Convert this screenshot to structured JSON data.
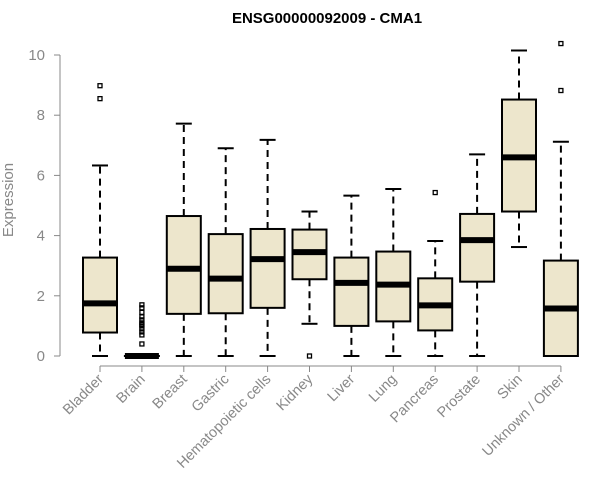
{
  "chart_data": {
    "type": "boxplot",
    "title": "ENSG00000092009 - CMA1",
    "xlabel": "",
    "ylabel": "Expression",
    "ylim": [
      0,
      10
    ],
    "yticks": [
      0,
      2,
      4,
      6,
      8,
      10
    ],
    "box_fill": "#ede6cc",
    "categories": [
      "Bladder",
      "Brain",
      "Breast",
      "Gastric",
      "Hematopoietic cells",
      "Kidney",
      "Liver",
      "Lung",
      "Pancreas",
      "Prostate",
      "Skin",
      "Unknown / Other"
    ],
    "boxes": [
      {
        "min": 0,
        "q1": 0.78,
        "median": 1.75,
        "q3": 3.27,
        "max": 6.33,
        "outliers": [
          8.55,
          8.98
        ]
      },
      {
        "min": 0,
        "q1": 0,
        "median": 0,
        "q3": 0,
        "max": 0,
        "outliers": [
          0.4,
          0.7,
          0.8,
          0.9,
          1.0,
          1.05,
          1.1,
          1.2,
          1.3,
          1.45,
          1.6,
          1.7
        ]
      },
      {
        "min": 0,
        "q1": 1.4,
        "median": 2.9,
        "q3": 4.65,
        "max": 7.72,
        "outliers": []
      },
      {
        "min": 0,
        "q1": 1.42,
        "median": 2.57,
        "q3": 4.05,
        "max": 6.9,
        "outliers": []
      },
      {
        "min": 0,
        "q1": 1.6,
        "median": 3.22,
        "q3": 4.22,
        "max": 7.18,
        "outliers": []
      },
      {
        "min": 1.07,
        "q1": 2.55,
        "median": 3.45,
        "q3": 4.2,
        "max": 4.8,
        "outliers": [
          0
        ]
      },
      {
        "min": 0,
        "q1": 1.0,
        "median": 2.43,
        "q3": 3.27,
        "max": 5.33,
        "outliers": []
      },
      {
        "min": 0,
        "q1": 1.15,
        "median": 2.37,
        "q3": 3.47,
        "max": 5.55,
        "outliers": []
      },
      {
        "min": 0,
        "q1": 0.85,
        "median": 1.68,
        "q3": 2.58,
        "max": 3.82,
        "outliers": [
          5.43
        ]
      },
      {
        "min": 0,
        "q1": 2.47,
        "median": 3.85,
        "q3": 4.72,
        "max": 6.7,
        "outliers": []
      },
      {
        "min": 3.62,
        "q1": 4.8,
        "median": 6.6,
        "q3": 8.52,
        "max": 10.15,
        "outliers": []
      },
      {
        "min": 0,
        "q1": 0,
        "median": 1.58,
        "q3": 3.17,
        "max": 7.12,
        "outliers": [
          8.82,
          10.38
        ]
      }
    ]
  }
}
